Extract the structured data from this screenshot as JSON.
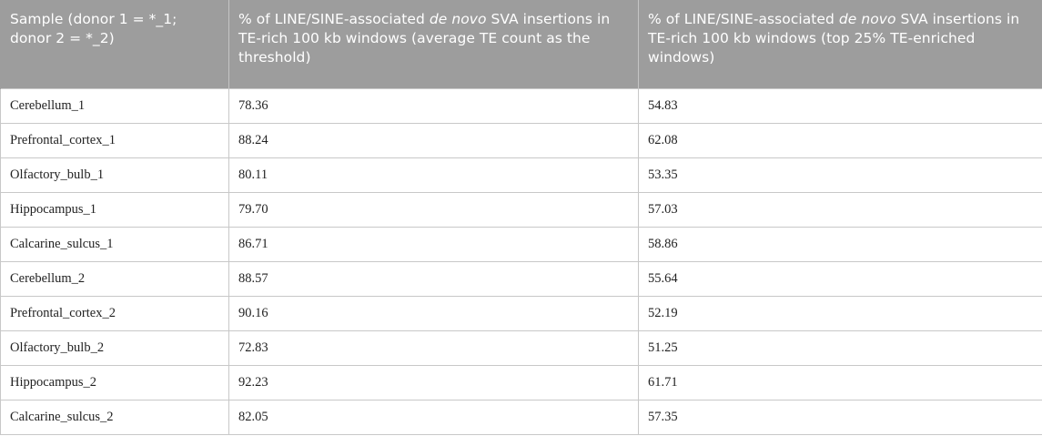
{
  "table": {
    "headers": [
      {
        "text": "Sample (donor 1 = *_1; donor 2 = *_2)"
      },
      {
        "prefix": "% of LINE/SINE-associated ",
        "italic": "de novo",
        "suffix": " SVA insertions in TE-rich 100 kb windows (average TE count as the threshold)"
      },
      {
        "prefix": "% of LINE/SINE-associated ",
        "italic": "de novo",
        "suffix": " SVA insertions in TE-rich 100 kb windows (top 25% TE-enriched windows)"
      }
    ],
    "rows": [
      [
        "Cerebellum_1",
        "78.36",
        "54.83"
      ],
      [
        "Prefrontal_cortex_1",
        "88.24",
        "62.08"
      ],
      [
        "Olfactory_bulb_1",
        "80.11",
        "53.35"
      ],
      [
        "Hippocampus_1",
        "79.70",
        "57.03"
      ],
      [
        "Calcarine_sulcus_1",
        "86.71",
        "58.86"
      ],
      [
        "Cerebellum_2",
        "88.57",
        "55.64"
      ],
      [
        "Prefrontal_cortex_2",
        "90.16",
        "52.19"
      ],
      [
        "Olfactory_bulb_2",
        "72.83",
        "51.25"
      ],
      [
        "Hippocampus_2",
        "92.23",
        "61.71"
      ],
      [
        "Calcarine_sulcus_2",
        "82.05",
        "57.35"
      ]
    ]
  },
  "colors": {
    "header_bg": "#9d9d9d",
    "header_text": "#ffffff",
    "cell_border": "#c8c8c8",
    "cell_text": "#222222"
  }
}
